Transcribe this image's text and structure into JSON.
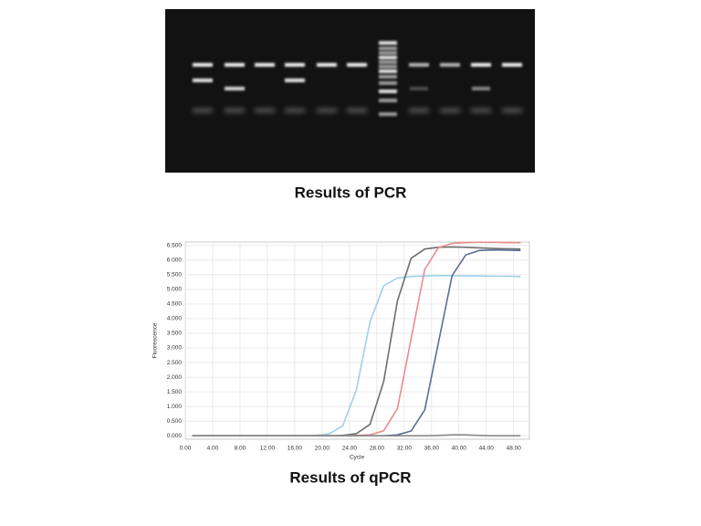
{
  "gel": {
    "caption": "Results of PCR"
  },
  "chart_data": {
    "type": "line",
    "title": "Results of qPCR",
    "x_label": "Cycle",
    "y_label": "Fluorescence",
    "x": [
      1,
      3,
      5,
      7,
      9,
      11,
      13,
      15,
      17,
      19,
      21,
      23,
      25,
      27,
      29,
      31,
      33,
      35,
      37,
      39,
      41,
      43,
      45,
      47,
      49
    ],
    "series": [
      {
        "color": "#9fd0ea",
        "values": [
          0,
          0,
          0,
          0,
          0,
          0,
          0,
          0,
          0,
          0.01,
          0.06,
          0.33,
          1.56,
          3.89,
          5.12,
          5.39,
          5.44,
          5.46,
          5.47,
          5.47,
          5.46,
          5.46,
          5.45,
          5.45,
          5.44
        ]
      },
      {
        "color": "#6e6e6e",
        "values": [
          0,
          0,
          0,
          0,
          0,
          0,
          0,
          0,
          0,
          0,
          0,
          0.01,
          0.07,
          0.39,
          1.85,
          4.6,
          6.06,
          6.38,
          6.44,
          6.45,
          6.44,
          6.42,
          6.4,
          6.39,
          6.38
        ]
      },
      {
        "color": "#ea8c8c",
        "values": [
          0,
          0,
          0,
          0,
          0,
          0,
          0,
          0,
          0,
          0,
          0,
          0,
          0.01,
          0.03,
          0.17,
          0.92,
          3.3,
          5.68,
          6.43,
          6.57,
          6.6,
          6.61,
          6.61,
          6.6,
          6.6
        ]
      },
      {
        "color": "#5a6e98",
        "values": [
          0,
          0,
          0,
          0,
          0,
          0,
          0,
          0,
          0,
          0,
          0,
          0,
          0,
          0,
          0,
          0.03,
          0.16,
          0.88,
          3.18,
          5.47,
          6.18,
          6.33,
          6.35,
          6.34,
          6.33
        ]
      },
      {
        "color": "#8a8a8a",
        "values": [
          0,
          0,
          0,
          0,
          0,
          0,
          0,
          0,
          0,
          0,
          0,
          0,
          0,
          0,
          0,
          0,
          0,
          0,
          0.01,
          0.03,
          0.03,
          0.01,
          0,
          0,
          0
        ]
      }
    ],
    "xlim": [
      0,
      50.3
    ],
    "ylim": [
      -0.12,
      6.62
    ],
    "xticks": [
      {
        "value": 0,
        "label": "0.00"
      },
      {
        "value": 4,
        "label": "4.00"
      },
      {
        "value": 8,
        "label": "8.00"
      },
      {
        "value": 12,
        "label": "12.00"
      },
      {
        "value": 16,
        "label": "16.00"
      },
      {
        "value": 20,
        "label": "20.00"
      },
      {
        "value": 24,
        "label": "24.00"
      },
      {
        "value": 28,
        "label": "28.00"
      },
      {
        "value": 32,
        "label": "32.00"
      },
      {
        "value": 36,
        "label": "36.00"
      },
      {
        "value": 40,
        "label": "40.00"
      },
      {
        "value": 44,
        "label": "44.00"
      },
      {
        "value": 48,
        "label": "48.00"
      }
    ],
    "yticks": [
      {
        "value": 0,
        "label": "0.000"
      },
      {
        "value": 0.5,
        "label": "0.500"
      },
      {
        "value": 1,
        "label": "1.000"
      },
      {
        "value": 1.5,
        "label": "1.500"
      },
      {
        "value": 2,
        "label": "2.000"
      },
      {
        "value": 2.5,
        "label": "2.500"
      },
      {
        "value": 3,
        "label": "3.000"
      },
      {
        "value": 3.5,
        "label": "3.500"
      },
      {
        "value": 4,
        "label": "4.000"
      },
      {
        "value": 4.5,
        "label": "4.500"
      },
      {
        "value": 5,
        "label": "5.000"
      },
      {
        "value": 5.5,
        "label": "5.500"
      },
      {
        "value": 6,
        "label": "6.000"
      },
      {
        "value": 6.5,
        "label": "6.500"
      }
    ],
    "grid": true
  }
}
